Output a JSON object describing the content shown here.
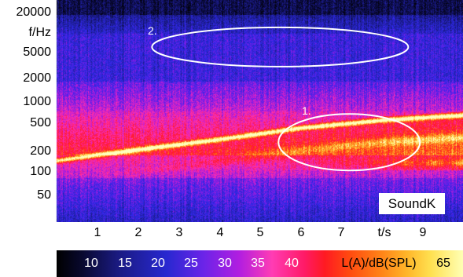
{
  "chart_data": {
    "type": "heatmap",
    "ylabel": "f/Hz",
    "xlabel": "t/s",
    "y_ticks": [
      "20000",
      "5000",
      "2000",
      "1000",
      "500",
      "200",
      "100",
      "50"
    ],
    "x_ticks": [
      "1",
      "2",
      "3",
      "4",
      "5",
      "6",
      "7",
      "9"
    ],
    "y_scale": "log",
    "xlim": [
      0,
      10
    ],
    "ylim": [
      25,
      25000
    ],
    "harmonic_track": {
      "t": [
        0,
        2,
        4,
        6,
        8,
        10
      ],
      "f": [
        170,
        240,
        330,
        470,
        600,
        700
      ]
    },
    "annotations": [
      {
        "label": "1.",
        "t_center": 7.2,
        "f_center": 300
      },
      {
        "label": "2.",
        "t_center": 5.5,
        "f_center": 5800
      }
    ],
    "colorbar": {
      "label": "L(A)/dB(SPL)",
      "ticks": [
        "10",
        "15",
        "20",
        "25",
        "30",
        "35",
        "40",
        "65"
      ],
      "colors": [
        "#000000",
        "#1a1a80",
        "#2828d0",
        "#b21ee0",
        "#ff3cb4",
        "#ff1a22",
        "#ff8418",
        "#ffffb4"
      ]
    },
    "watermark": "SoundK"
  }
}
